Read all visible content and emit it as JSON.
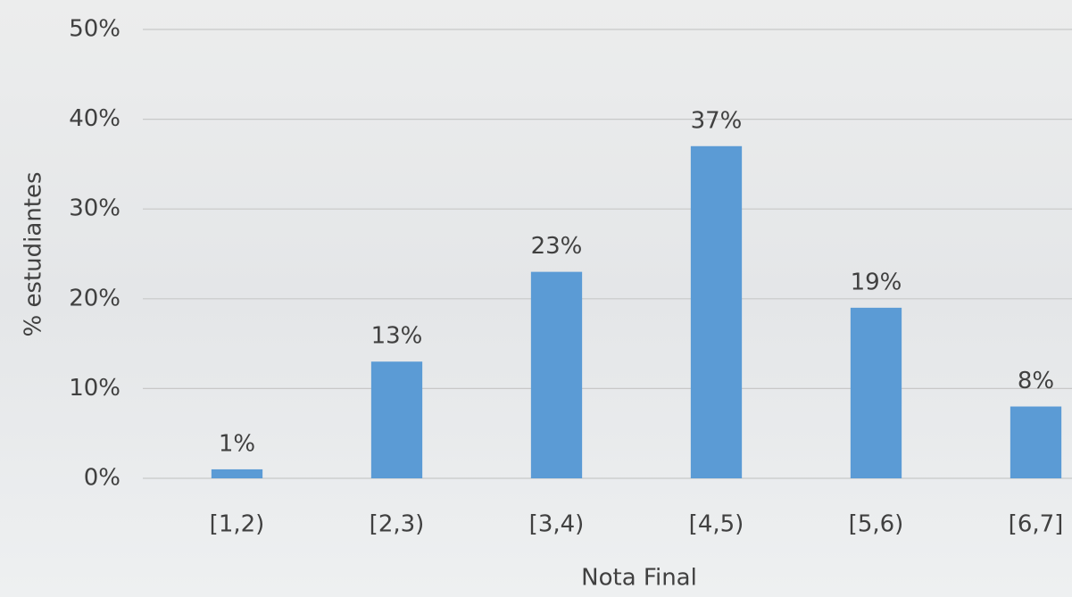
{
  "chart_data": {
    "type": "bar",
    "x_label": "Nota Final",
    "y_label": "% estudiantes",
    "categories": [
      "[1,2)",
      "[2,3)",
      "[3,4)",
      "[4,5)",
      "[5,6)",
      "[6,7]"
    ],
    "values": [
      1,
      13,
      23,
      37,
      19,
      8
    ],
    "value_labels": [
      "1%",
      "13%",
      "23%",
      "37%",
      "19%",
      "8%"
    ],
    "color": "#5b9bd5",
    "ylim": [
      0,
      50
    ],
    "yticks": [
      {
        "value": 0,
        "label": "0%"
      },
      {
        "value": 10,
        "label": "10%"
      },
      {
        "value": 20,
        "label": "20%"
      },
      {
        "value": 30,
        "label": "30%"
      },
      {
        "value": 40,
        "label": "40%"
      },
      {
        "value": 50,
        "label": "50%"
      }
    ],
    "grid": true
  }
}
